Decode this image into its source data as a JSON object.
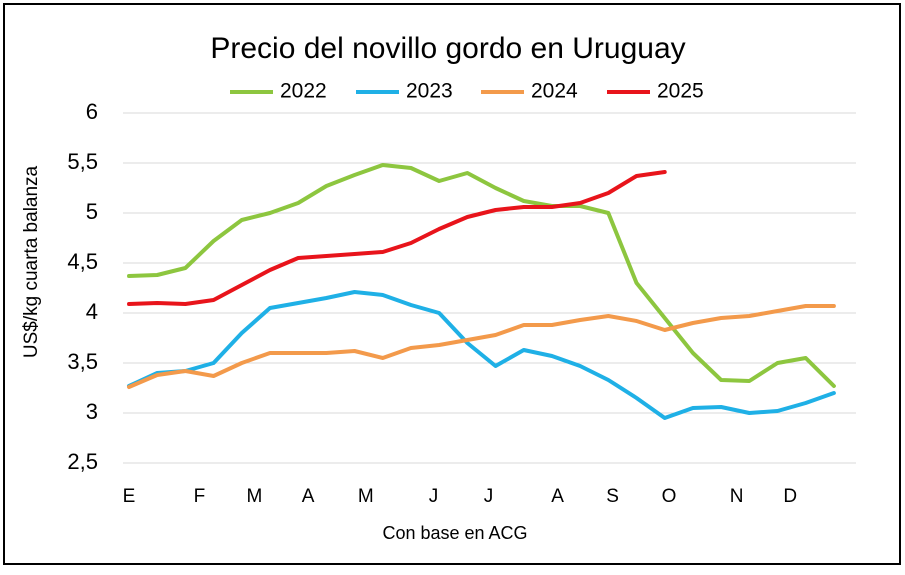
{
  "chart_data": {
    "type": "line",
    "title": "Precio del novillo gordo en Uruguay",
    "y_label": "US$/kg cuarta balanza",
    "x_label": "Con base en ACG",
    "x": [
      0,
      2,
      4,
      6,
      8,
      10,
      12,
      14,
      16,
      18,
      20,
      22,
      24,
      26,
      28,
      30,
      32,
      34,
      36,
      38,
      40,
      42,
      44,
      46,
      48,
      50
    ],
    "xlim": [
      0,
      51
    ],
    "xticks": [
      {
        "value": 0,
        "label": "E"
      },
      {
        "value": 5,
        "label": "F"
      },
      {
        "value": 8.9,
        "label": "M"
      },
      {
        "value": 12.7,
        "label": "A"
      },
      {
        "value": 16.8,
        "label": "M"
      },
      {
        "value": 21.6,
        "label": "J"
      },
      {
        "value": 25.5,
        "label": "J"
      },
      {
        "value": 30.4,
        "label": "A"
      },
      {
        "value": 34.3,
        "label": "S"
      },
      {
        "value": 38.3,
        "label": "O"
      },
      {
        "value": 43.1,
        "label": "N"
      },
      {
        "value": 46.9,
        "label": "D"
      }
    ],
    "ylim": [
      2.5,
      6
    ],
    "yticks": [
      {
        "value": 2.5,
        "label": "2,5"
      },
      3,
      {
        "value": 3.5,
        "label": "3,5"
      },
      4,
      {
        "value": 4.5,
        "label": "4,5"
      },
      5,
      {
        "value": 5.5,
        "label": "5,5"
      },
      6
    ],
    "grid": true,
    "series": [
      {
        "name": "2022",
        "color": "#8dc63f",
        "values": [
          4.37,
          4.38,
          4.45,
          4.72,
          4.93,
          5.0,
          5.1,
          5.27,
          5.38,
          5.48,
          5.45,
          5.32,
          5.4,
          5.25,
          5.12,
          5.07,
          5.07,
          5.0,
          4.3,
          3.95,
          3.6,
          3.33,
          3.32,
          3.5,
          3.55,
          3.27
        ]
      },
      {
        "name": "2023",
        "color": "#1fb0e6",
        "values": [
          3.27,
          3.4,
          3.42,
          3.5,
          3.8,
          4.05,
          4.1,
          4.15,
          4.21,
          4.18,
          4.08,
          4.0,
          3.7,
          3.47,
          3.63,
          3.57,
          3.47,
          3.33,
          3.15,
          2.95,
          3.05,
          3.06,
          3.0,
          3.02,
          3.1,
          3.2
        ]
      },
      {
        "name": "2024",
        "color": "#f39a4b",
        "values": [
          3.26,
          3.38,
          3.42,
          3.37,
          3.5,
          3.6,
          3.6,
          3.6,
          3.62,
          3.55,
          3.65,
          3.68,
          3.73,
          3.78,
          3.88,
          3.88,
          3.93,
          3.97,
          3.92,
          3.83,
          3.9,
          3.95,
          3.97,
          4.02,
          4.07,
          4.07
        ]
      },
      {
        "name": "2025",
        "color": "#e8141b",
        "values": [
          4.09,
          4.1,
          4.09,
          4.13,
          4.28,
          4.43,
          4.55,
          4.57,
          4.59,
          4.61,
          4.7,
          4.84,
          4.96,
          5.03,
          5.06,
          5.06,
          5.1,
          5.2,
          5.37,
          5.41,
          null,
          null,
          null,
          null,
          null,
          null
        ]
      }
    ]
  }
}
